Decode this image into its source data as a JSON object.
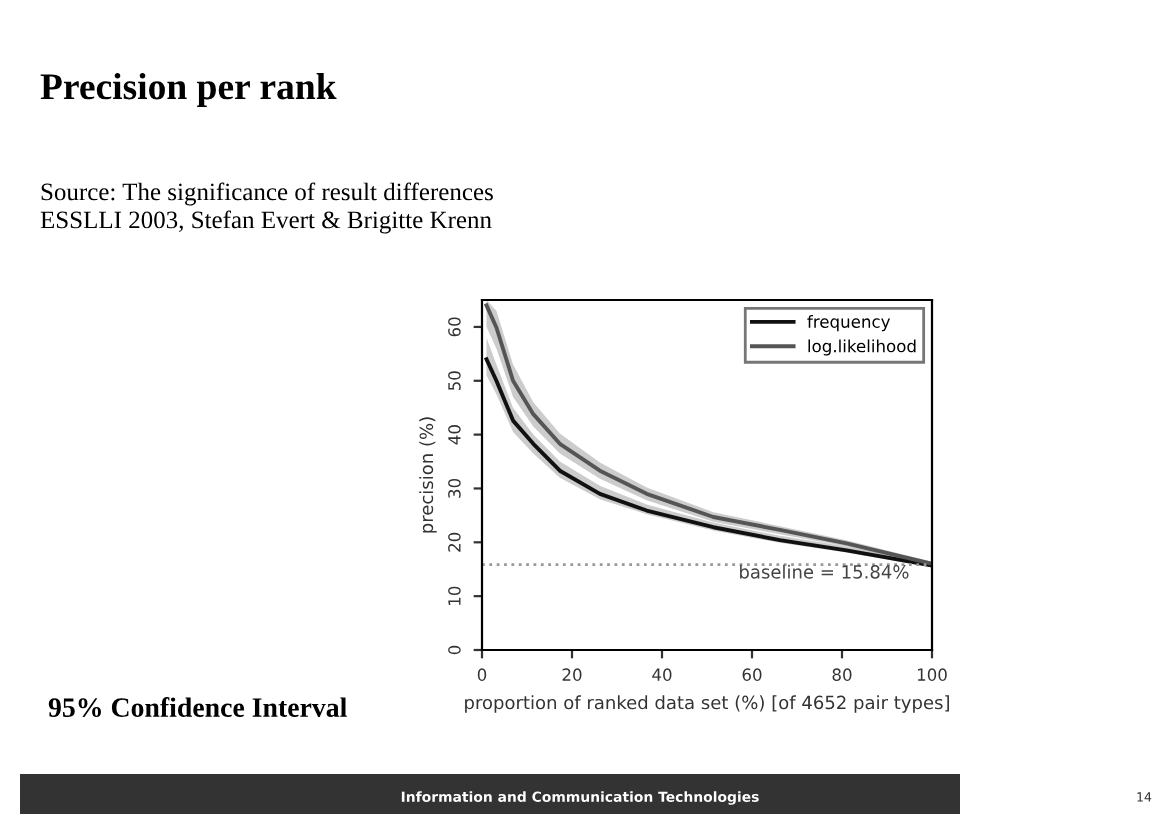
{
  "chart_data": {
    "type": "line",
    "title": "Precision per rank",
    "xlabel": "proportion of ranked data set (%) [of 4652 pair types]",
    "ylabel": "precision (%)",
    "x": [
      1,
      3.2,
      6.9,
      11.4,
      17.3,
      26.2,
      36.6,
      51.4,
      66.2,
      81,
      100
    ],
    "series": [
      {
        "name": "frequency",
        "color": "#111111",
        "values": [
          54,
          50,
          42.6,
          38.3,
          33.3,
          29,
          25.9,
          22.8,
          20.4,
          18.5,
          15.7
        ],
        "lower": [
          51,
          47.5,
          40.5,
          36.5,
          32,
          28,
          25.2,
          22.2,
          19.9,
          18.1,
          15.4
        ],
        "upper": [
          58,
          53,
          45,
          40,
          35,
          30.5,
          27,
          23.7,
          21.2,
          19.2,
          16.1
        ]
      },
      {
        "name": "log.likelihood",
        "color": "#555555",
        "values": [
          64,
          59.9,
          50,
          43.8,
          38.3,
          33.3,
          29,
          24.7,
          22.3,
          19.8,
          16
        ],
        "lower": [
          60,
          56,
          47,
          41.5,
          36.5,
          31.8,
          27.8,
          23.8,
          21.5,
          19.2,
          15.6
        ],
        "upper": [
          65,
          63,
          53,
          46,
          40.2,
          34.8,
          30.2,
          25.6,
          23,
          20.4,
          16.4
        ]
      }
    ],
    "xlim": [
      0,
      100
    ],
    "ylim": [
      0,
      65
    ],
    "xticks": [
      0,
      20,
      40,
      60,
      80,
      100
    ],
    "yticks": [
      0,
      10,
      20,
      30,
      40,
      50,
      60
    ],
    "ref_lines": [
      {
        "axis": "y",
        "value": 15.84,
        "label": "baseline = 15.84%",
        "color": "#999999",
        "line_style": "dotted"
      }
    ],
    "legend": "top right",
    "grid": false,
    "marker": "none",
    "line_style": "solid",
    "annotations": [
      "Source: The significance of result differences",
      "ESSLLI 2003, Stefan Evert & Brigitte Krenn",
      "95% Confidence Interval",
      "Information and Communication Technologies",
      "14"
    ]
  }
}
